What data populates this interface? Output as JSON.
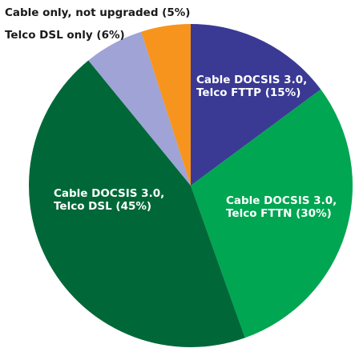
{
  "chart_data": {
    "type": "pie",
    "title": "",
    "start_angle_deg": 0,
    "direction": "clockwise",
    "slices": [
      {
        "label_lines": [
          "Cable DOCSIS 3.0,",
          "Telco FTTP (15%)"
        ],
        "value": 15,
        "color": "#3a3a94",
        "label_color": "#ffffff"
      },
      {
        "label_lines": [
          "Cable DOCSIS 3.0,",
          "Telco FTTN (30%)"
        ],
        "value": 30,
        "color": "#00a651",
        "label_color": "#ffffff"
      },
      {
        "label_lines": [
          "Cable DOCSIS 3.0,",
          "Telco DSL (45%)"
        ],
        "value": 45,
        "color": "#006838",
        "label_color": "#ffffff"
      },
      {
        "label_lines": [
          "Telco DSL only (6%)"
        ],
        "value": 6,
        "color": "#9fa3d6",
        "label_color": "#1a1a1a"
      },
      {
        "label_lines": [
          "Cable only, not upgraded (5%)"
        ],
        "value": 5,
        "color": "#f7941d",
        "label_color": "#1a1a1a"
      }
    ]
  }
}
